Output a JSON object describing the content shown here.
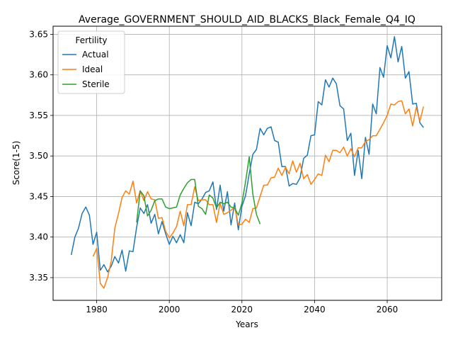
{
  "chart_data": {
    "type": "line",
    "title": "Average_GOVERNMENT_SHOULD_AID_BLACKS_Black_Female_Q4_IQ",
    "xlabel": "Years",
    "ylabel": "Score(1-5)",
    "xlim": [
      1968,
      2075
    ],
    "ylim": [
      3.322,
      3.66
    ],
    "xticks": [
      1980,
      2000,
      2020,
      2040,
      2060
    ],
    "yticks": [
      3.35,
      3.4,
      3.45,
      3.5,
      3.55,
      3.6,
      3.65
    ],
    "grid": true,
    "legend": {
      "title": "Fertility",
      "placement": "top-left"
    },
    "series": [
      {
        "name": "Actual",
        "color": "#1f77b4",
        "x": [
          1973,
          1974,
          1975,
          1976,
          1977,
          1978,
          1979,
          1980,
          1981,
          1982,
          1983,
          1984,
          1985,
          1986,
          1987,
          1988,
          1989,
          1990,
          1991,
          1992,
          1993,
          1994,
          1995,
          1996,
          1997,
          1998,
          1999,
          2000,
          2001,
          2002,
          2003,
          2004,
          2005,
          2006,
          2007,
          2008,
          2009,
          2010,
          2011,
          2012,
          2013,
          2014,
          2015,
          2016,
          2017,
          2018,
          2019,
          2020,
          2021,
          2022,
          2023,
          2024,
          2025,
          2026,
          2027,
          2028,
          2029,
          2030,
          2031,
          2032,
          2033,
          2034,
          2035,
          2036,
          2037,
          2038,
          2039,
          2040,
          2041,
          2042,
          2043,
          2044,
          2045,
          2046,
          2047,
          2048,
          2049,
          2050,
          2051,
          2052,
          2053,
          2054,
          2055,
          2056,
          2057,
          2058,
          2059,
          2060,
          2061,
          2062,
          2063,
          2064,
          2065,
          2066,
          2067,
          2068,
          2069,
          2070
        ],
        "values": [
          3.378,
          3.4,
          3.411,
          3.429,
          3.437,
          3.427,
          3.391,
          3.406,
          3.359,
          3.366,
          3.357,
          3.364,
          3.376,
          3.368,
          3.384,
          3.358,
          3.383,
          3.382,
          3.412,
          3.436,
          3.429,
          3.44,
          3.417,
          3.428,
          3.404,
          3.419,
          3.404,
          3.391,
          3.401,
          3.393,
          3.403,
          3.393,
          3.43,
          3.414,
          3.443,
          3.441,
          3.447,
          3.455,
          3.457,
          3.468,
          3.434,
          3.464,
          3.432,
          3.456,
          3.415,
          3.442,
          3.409,
          3.438,
          3.451,
          3.478,
          3.502,
          3.508,
          3.534,
          3.526,
          3.534,
          3.536,
          3.519,
          3.517,
          3.487,
          3.487,
          3.463,
          3.466,
          3.465,
          3.473,
          3.497,
          3.501,
          3.525,
          3.526,
          3.567,
          3.563,
          3.594,
          3.585,
          3.596,
          3.589,
          3.562,
          3.558,
          3.519,
          3.528,
          3.476,
          3.507,
          3.472,
          3.523,
          3.502,
          3.564,
          3.552,
          3.609,
          3.597,
          3.636,
          3.621,
          3.647,
          3.616,
          3.635,
          3.596,
          3.604,
          3.564,
          3.565,
          3.541,
          3.535
        ]
      },
      {
        "name": "Ideal",
        "color": "#ff7f0e",
        "x": [
          1979,
          1980,
          1981,
          1982,
          1983,
          1984,
          1985,
          1986,
          1987,
          1988,
          1989,
          1990,
          1991,
          1992,
          1993,
          1994,
          1995,
          1996,
          1997,
          1998,
          1999,
          2000,
          2001,
          2002,
          2003,
          2004,
          2005,
          2006,
          2007,
          2008,
          2009,
          2010,
          2011,
          2012,
          2013,
          2014,
          2015,
          2016,
          2017,
          2018,
          2019,
          2020,
          2021,
          2022,
          2023,
          2024,
          2025,
          2026,
          2027,
          2028,
          2029,
          2030,
          2031,
          2032,
          2033,
          2034,
          2035,
          2036,
          2037,
          2038,
          2039,
          2040,
          2041,
          2042,
          2043,
          2044,
          2045,
          2046,
          2047,
          2048,
          2049,
          2050,
          2051,
          2052,
          2053,
          2054,
          2055,
          2056,
          2057,
          2058,
          2059,
          2060,
          2061,
          2062,
          2063,
          2064,
          2065,
          2066,
          2067,
          2068,
          2069,
          2070
        ],
        "values": [
          3.376,
          3.386,
          3.343,
          3.337,
          3.35,
          3.37,
          3.411,
          3.429,
          3.449,
          3.457,
          3.453,
          3.469,
          3.442,
          3.457,
          3.445,
          3.456,
          3.447,
          3.446,
          3.423,
          3.424,
          3.407,
          3.399,
          3.405,
          3.413,
          3.432,
          3.414,
          3.44,
          3.44,
          3.462,
          3.445,
          3.446,
          3.446,
          3.44,
          3.44,
          3.418,
          3.442,
          3.428,
          3.43,
          3.433,
          3.437,
          3.415,
          3.416,
          3.422,
          3.418,
          3.435,
          3.436,
          3.45,
          3.464,
          3.464,
          3.473,
          3.474,
          3.485,
          3.476,
          3.486,
          3.478,
          3.494,
          3.48,
          3.491,
          3.472,
          3.477,
          3.465,
          3.471,
          3.478,
          3.476,
          3.501,
          3.493,
          3.507,
          3.507,
          3.504,
          3.511,
          3.5,
          3.509,
          3.499,
          3.51,
          3.51,
          3.518,
          3.52,
          3.525,
          3.525,
          3.533,
          3.541,
          3.55,
          3.564,
          3.563,
          3.567,
          3.568,
          3.552,
          3.558,
          3.537,
          3.56,
          3.543,
          3.561
        ]
      },
      {
        "name": "Sterile",
        "color": "#2ca02c",
        "x": [
          1991,
          1992,
          1993,
          1994,
          1995,
          1996,
          1997,
          1998,
          1999,
          2000,
          2001,
          2002,
          2003,
          2004,
          2005,
          2006,
          2007,
          2008,
          2009,
          2010,
          2011,
          2012,
          2013,
          2014,
          2015,
          2016,
          2017,
          2018,
          2019,
          2020,
          2021,
          2022,
          2023,
          2024,
          2025
        ],
        "values": [
          3.418,
          3.457,
          3.451,
          3.426,
          3.433,
          3.445,
          3.447,
          3.447,
          3.437,
          3.435,
          3.436,
          3.437,
          3.452,
          3.46,
          3.467,
          3.471,
          3.471,
          3.438,
          3.435,
          3.428,
          3.452,
          3.448,
          3.436,
          3.443,
          3.441,
          3.443,
          3.437,
          3.436,
          3.427,
          3.442,
          3.468,
          3.499,
          3.453,
          3.428,
          3.416
        ]
      }
    ]
  }
}
